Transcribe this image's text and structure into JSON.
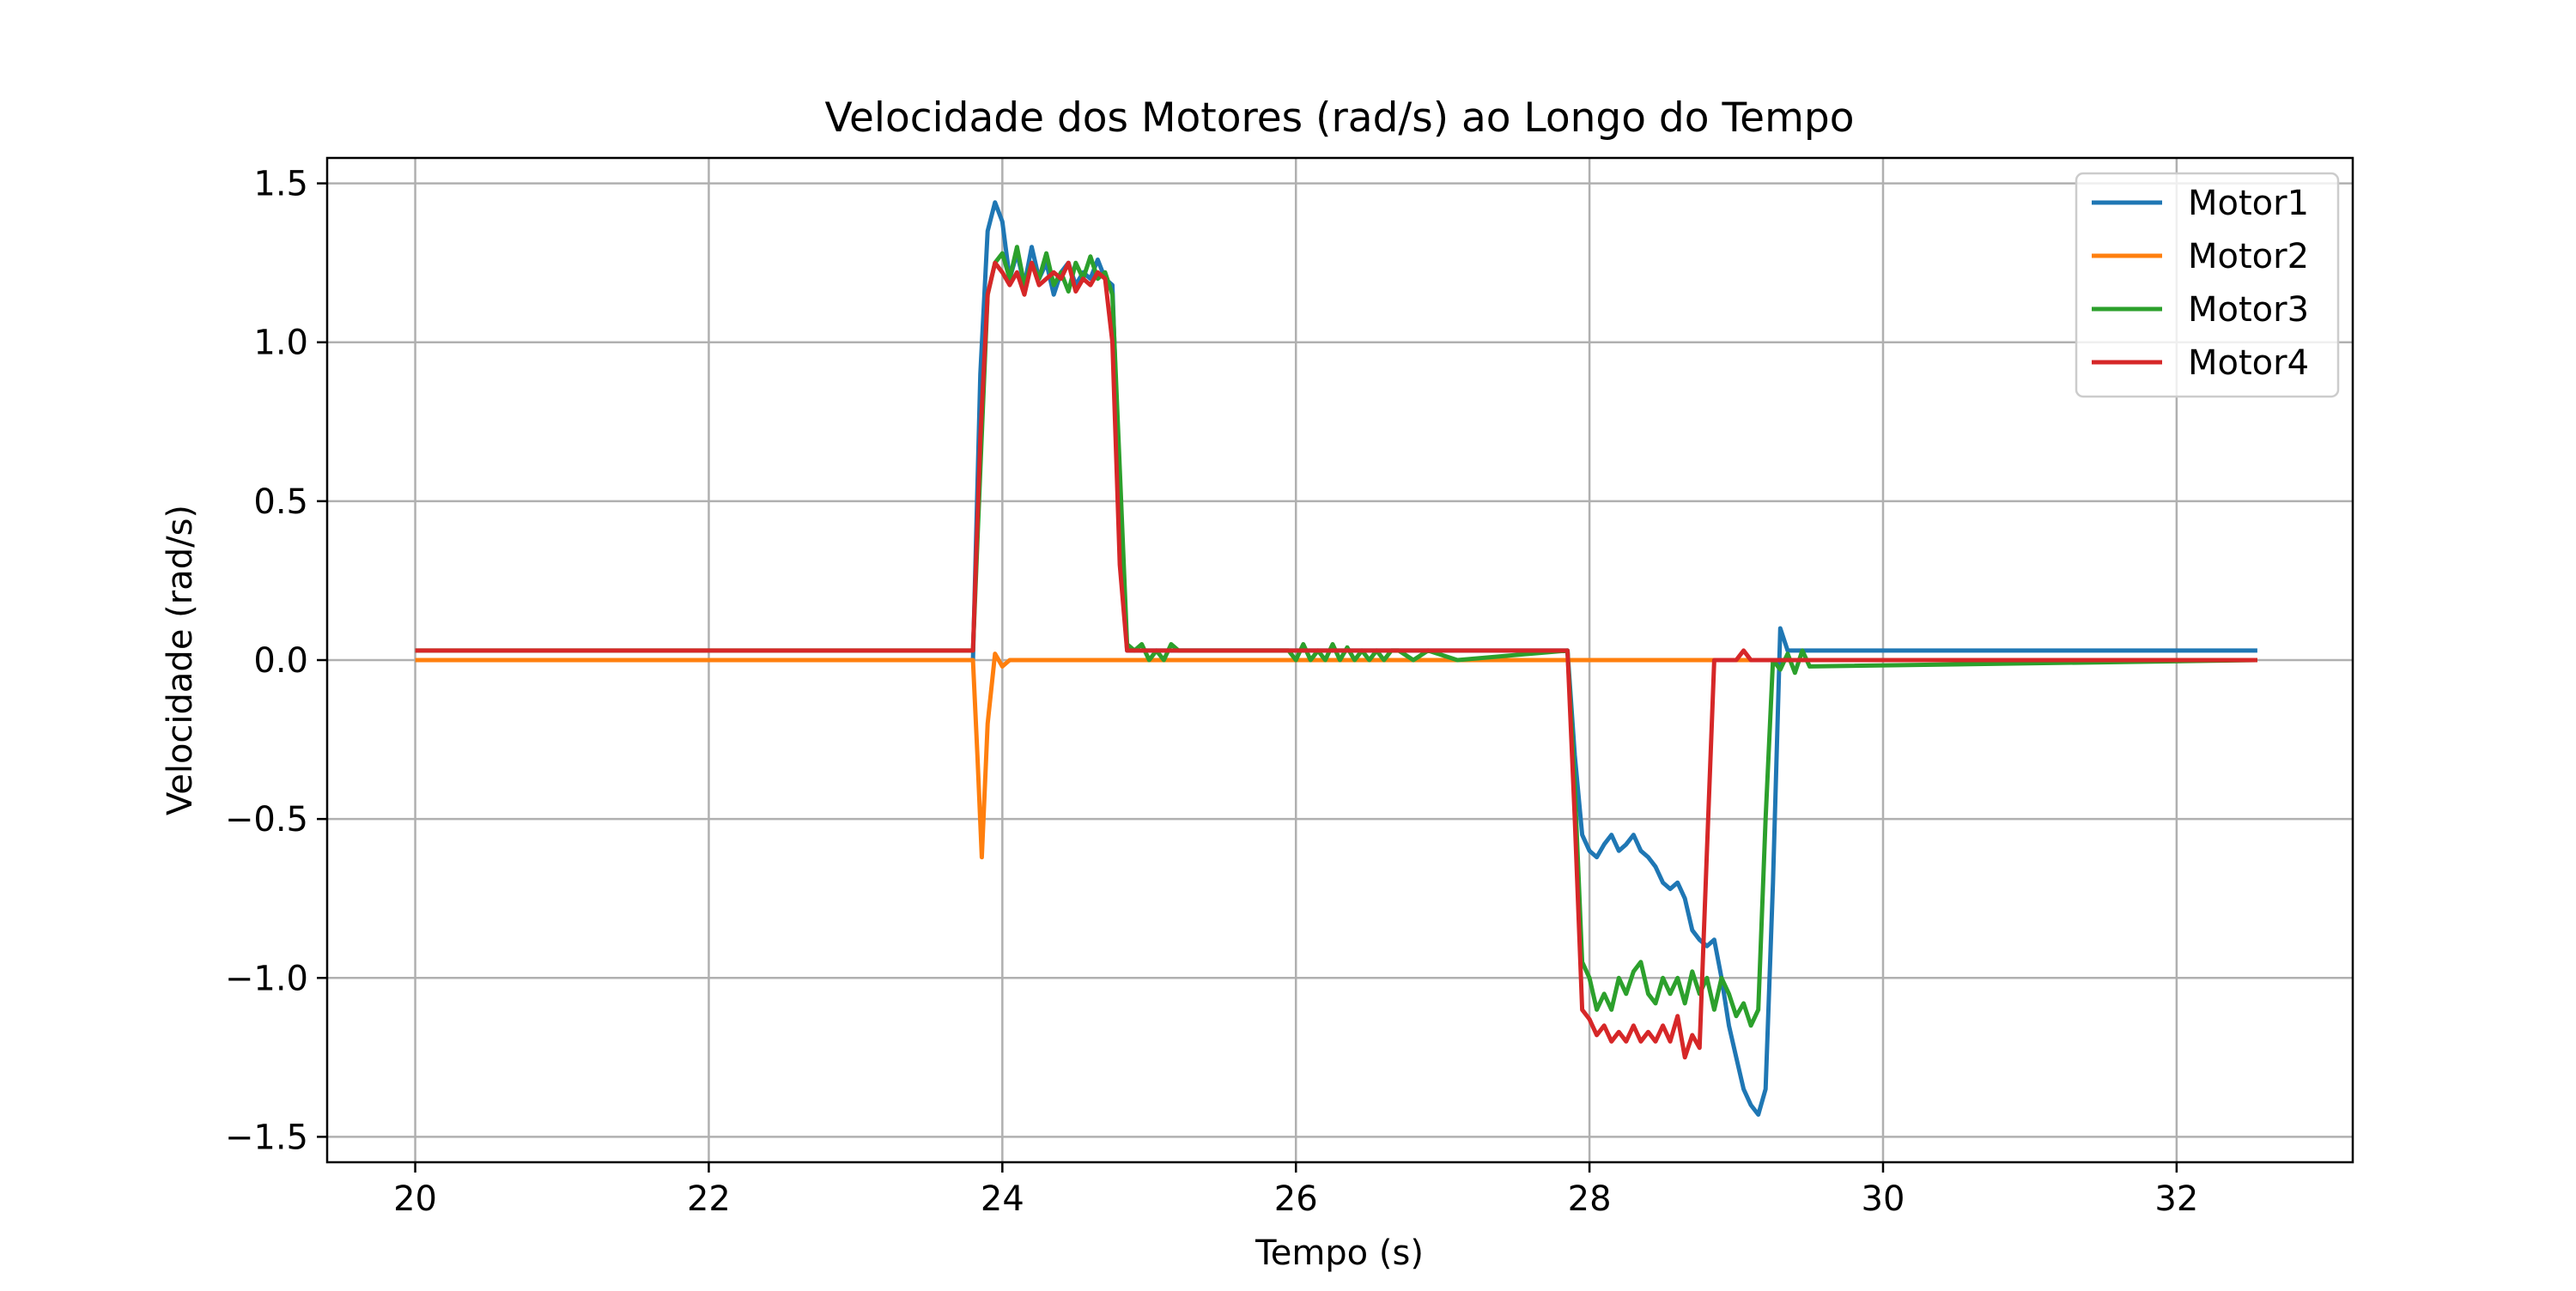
{
  "chart_data": {
    "type": "line",
    "title": "Velocidade dos Motores (rad/s) ao Longo do Tempo",
    "xlabel": "Tempo (s)",
    "ylabel": "Velocidade (rad/s)",
    "xlim": [
      19.4,
      33.2
    ],
    "ylim": [
      -1.58,
      1.58
    ],
    "xticks": [
      20,
      22,
      24,
      26,
      28,
      30,
      32
    ],
    "xtick_labels": [
      "20",
      "22",
      "24",
      "26",
      "28",
      "30",
      "32"
    ],
    "yticks": [
      1.5,
      1.0,
      0.5,
      0.0,
      -0.5,
      -1.0,
      -1.5
    ],
    "ytick_labels": [
      "1.5",
      "1.0",
      "0.5",
      "0.0",
      "−0.5",
      "−1.0",
      "−1.5"
    ],
    "grid": true,
    "legend_position": "top-right",
    "series": [
      {
        "name": "Motor1",
        "color": "#1f77b4",
        "x": [
          20.0,
          23.8,
          23.85,
          23.9,
          23.95,
          24.0,
          24.05,
          24.1,
          24.15,
          24.2,
          24.25,
          24.3,
          24.35,
          24.4,
          24.45,
          24.5,
          24.55,
          24.6,
          24.65,
          24.7,
          24.75,
          24.8,
          24.85,
          24.9,
          25.0,
          27.85,
          27.9,
          27.95,
          28.0,
          28.05,
          28.1,
          28.15,
          28.2,
          28.25,
          28.3,
          28.35,
          28.4,
          28.45,
          28.5,
          28.55,
          28.6,
          28.65,
          28.7,
          28.75,
          28.8,
          28.85,
          28.9,
          28.95,
          29.0,
          29.05,
          29.1,
          29.15,
          29.2,
          29.25,
          29.3,
          29.35,
          29.4,
          29.45,
          29.5,
          32.55
        ],
        "y": [
          0.0,
          0.0,
          0.9,
          1.35,
          1.44,
          1.38,
          1.2,
          1.28,
          1.18,
          1.3,
          1.2,
          1.25,
          1.15,
          1.22,
          1.25,
          1.18,
          1.22,
          1.2,
          1.26,
          1.2,
          1.18,
          0.5,
          0.03,
          0.03,
          0.03,
          0.03,
          -0.3,
          -0.55,
          -0.6,
          -0.62,
          -0.58,
          -0.55,
          -0.6,
          -0.58,
          -0.55,
          -0.6,
          -0.62,
          -0.65,
          -0.7,
          -0.72,
          -0.7,
          -0.75,
          -0.85,
          -0.88,
          -0.9,
          -0.88,
          -1.0,
          -1.15,
          -1.25,
          -1.35,
          -1.4,
          -1.43,
          -1.35,
          -0.7,
          0.1,
          0.03,
          0.03,
          0.03,
          0.03,
          0.03
        ]
      },
      {
        "name": "Motor2",
        "color": "#ff7f0e",
        "x": [
          20.0,
          23.8,
          23.83,
          23.86,
          23.9,
          23.95,
          24.0,
          24.05,
          24.1,
          32.55
        ],
        "y": [
          0.0,
          0.0,
          -0.3,
          -0.62,
          -0.2,
          0.02,
          -0.02,
          0.0,
          0.0,
          0.0
        ]
      },
      {
        "name": "Motor3",
        "color": "#2ca02c",
        "x": [
          20.0,
          23.8,
          23.85,
          23.9,
          23.95,
          24.0,
          24.05,
          24.1,
          24.15,
          24.2,
          24.25,
          24.3,
          24.35,
          24.4,
          24.45,
          24.5,
          24.55,
          24.6,
          24.65,
          24.7,
          24.75,
          24.8,
          24.85,
          24.9,
          24.95,
          25.0,
          25.05,
          25.1,
          25.15,
          25.2,
          25.95,
          26.0,
          26.05,
          26.1,
          26.15,
          26.2,
          26.25,
          26.3,
          26.35,
          26.4,
          26.45,
          26.5,
          26.55,
          26.6,
          26.65,
          26.7,
          26.8,
          26.9,
          27.1,
          27.85,
          27.9,
          27.95,
          28.0,
          28.05,
          28.1,
          28.15,
          28.2,
          28.25,
          28.3,
          28.35,
          28.4,
          28.45,
          28.5,
          28.55,
          28.6,
          28.65,
          28.7,
          28.75,
          28.8,
          28.85,
          28.9,
          28.95,
          29.0,
          29.05,
          29.1,
          29.15,
          29.2,
          29.25,
          29.3,
          29.35,
          29.4,
          29.45,
          29.5,
          32.55
        ],
        "y": [
          0.03,
          0.03,
          0.6,
          1.15,
          1.25,
          1.28,
          1.2,
          1.3,
          1.18,
          1.25,
          1.2,
          1.28,
          1.18,
          1.22,
          1.16,
          1.25,
          1.2,
          1.27,
          1.2,
          1.22,
          1.15,
          0.6,
          0.05,
          0.03,
          0.05,
          0.0,
          0.03,
          0.0,
          0.05,
          0.03,
          0.03,
          0.0,
          0.05,
          0.0,
          0.03,
          0.0,
          0.05,
          0.0,
          0.04,
          0.0,
          0.03,
          0.0,
          0.03,
          0.0,
          0.03,
          0.03,
          0.0,
          0.03,
          0.0,
          0.03,
          -0.4,
          -0.95,
          -1.0,
          -1.1,
          -1.05,
          -1.1,
          -1.0,
          -1.05,
          -0.98,
          -0.95,
          -1.05,
          -1.08,
          -1.0,
          -1.05,
          -1.0,
          -1.08,
          -0.98,
          -1.05,
          -1.0,
          -1.1,
          -1.0,
          -1.05,
          -1.12,
          -1.08,
          -1.15,
          -1.1,
          -0.5,
          0.0,
          -0.03,
          0.02,
          -0.04,
          0.03,
          -0.02,
          0.0
        ]
      },
      {
        "name": "Motor4",
        "color": "#d62728",
        "x": [
          20.0,
          23.8,
          23.85,
          23.9,
          23.95,
          24.0,
          24.05,
          24.1,
          24.15,
          24.2,
          24.25,
          24.3,
          24.35,
          24.4,
          24.45,
          24.5,
          24.55,
          24.6,
          24.65,
          24.7,
          24.75,
          24.8,
          24.85,
          25.0,
          27.85,
          27.9,
          27.95,
          28.0,
          28.05,
          28.1,
          28.15,
          28.2,
          28.25,
          28.3,
          28.35,
          28.4,
          28.45,
          28.5,
          28.55,
          28.6,
          28.65,
          28.7,
          28.75,
          28.8,
          28.85,
          28.9,
          29.0,
          29.05,
          29.1,
          32.55
        ],
        "y": [
          0.03,
          0.03,
          0.7,
          1.15,
          1.25,
          1.22,
          1.18,
          1.22,
          1.15,
          1.25,
          1.18,
          1.2,
          1.22,
          1.2,
          1.25,
          1.16,
          1.2,
          1.18,
          1.22,
          1.2,
          1.0,
          0.3,
          0.03,
          0.03,
          0.03,
          -0.5,
          -1.1,
          -1.13,
          -1.18,
          -1.15,
          -1.2,
          -1.17,
          -1.2,
          -1.15,
          -1.2,
          -1.17,
          -1.2,
          -1.15,
          -1.2,
          -1.12,
          -1.25,
          -1.18,
          -1.22,
          -0.6,
          0.0,
          0.0,
          0.0,
          0.03,
          0.0,
          0.0
        ]
      }
    ]
  }
}
